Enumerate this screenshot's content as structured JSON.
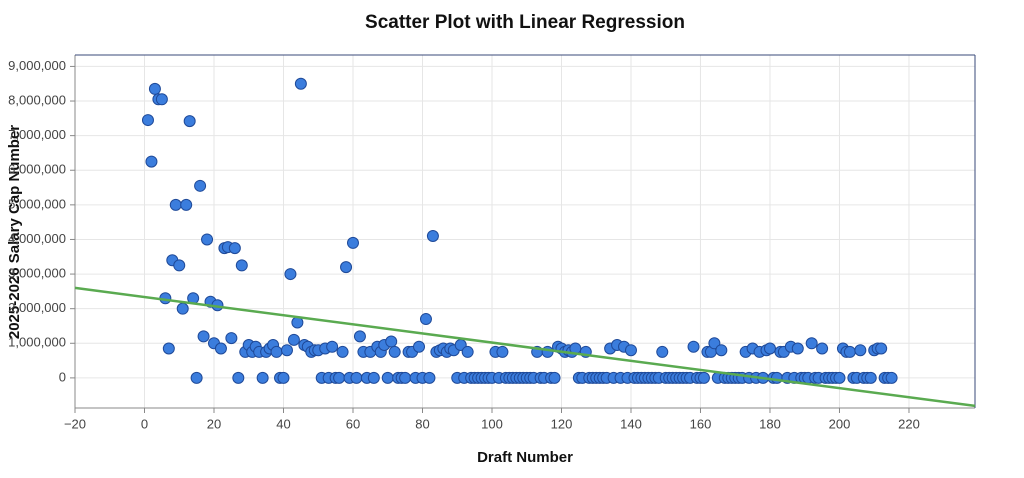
{
  "chart_data": {
    "type": "scatter",
    "title": "Scatter Plot with Linear Regression",
    "x_label": "Draft Number",
    "y_label": "2025-2026 Salary Cap Number",
    "xlim": [
      -20,
      239
    ],
    "ylim": [
      -870000,
      9330000
    ],
    "xticks": [
      {
        "value": -20,
        "label": "−20"
      },
      0,
      20,
      40,
      60,
      80,
      100,
      120,
      140,
      160,
      180,
      200,
      220
    ],
    "yticks": [
      0,
      {
        "value": 1000000,
        "label": "1,000,000"
      },
      {
        "value": 2000000,
        "label": "2,000,000"
      },
      {
        "value": 3000000,
        "label": "3,000,000"
      },
      {
        "value": 4000000,
        "label": "4,000,000"
      },
      {
        "value": 5000000,
        "label": "5,000,000"
      },
      {
        "value": 6000000,
        "label": "6,000,000"
      },
      {
        "value": 7000000,
        "label": "7,000,000"
      },
      {
        "value": 8000000,
        "label": "8,000,000"
      },
      {
        "value": 9000000,
        "label": "9,000,000"
      }
    ],
    "grid": true,
    "color": "#3b7ddd",
    "line_color": "#5aaa50",
    "regression": {
      "x": [
        -20,
        239
      ],
      "y": [
        2600000,
        -810000
      ]
    },
    "x": [
      1,
      2,
      3,
      4,
      5,
      6,
      7,
      8,
      9,
      10,
      11,
      12,
      13,
      14,
      15,
      16,
      17,
      18,
      19,
      20,
      21,
      22,
      23,
      24,
      25,
      26,
      27,
      28,
      29,
      30,
      31,
      32,
      33,
      34,
      35,
      36,
      37,
      38,
      39,
      40,
      41,
      42,
      43,
      44,
      45,
      46,
      47,
      48,
      49,
      50,
      51,
      52,
      53,
      54,
      55,
      56,
      57,
      58,
      59,
      60,
      61,
      62,
      63,
      64,
      65,
      66,
      67,
      68,
      69,
      70,
      71,
      72,
      73,
      74,
      75,
      76,
      77,
      78,
      79,
      80,
      81,
      82,
      83,
      84,
      85,
      86,
      87,
      88,
      89,
      90,
      91,
      92,
      93,
      94,
      95,
      96,
      97,
      98,
      99,
      100,
      101,
      102,
      103,
      104,
      105,
      106,
      107,
      108,
      109,
      110,
      111,
      112,
      113,
      114,
      115,
      116,
      117,
      118,
      119,
      120,
      121,
      122,
      123,
      124,
      125,
      126,
      127,
      128,
      129,
      130,
      131,
      132,
      133,
      134,
      135,
      136,
      137,
      138,
      139,
      140,
      141,
      142,
      143,
      144,
      145,
      146,
      147,
      148,
      149,
      150,
      151,
      152,
      153,
      154,
      155,
      156,
      157,
      158,
      159,
      160,
      161,
      162,
      163,
      164,
      165,
      166,
      167,
      168,
      169,
      170,
      171,
      172,
      173,
      174,
      175,
      176,
      177,
      178,
      179,
      180,
      181,
      182,
      183,
      184,
      185,
      186,
      187,
      188,
      189,
      190,
      191,
      192,
      193,
      194,
      195,
      196,
      197,
      198,
      199,
      200,
      201,
      202,
      203,
      204,
      205,
      206,
      207,
      208,
      209,
      210,
      211,
      212,
      213,
      214,
      215
    ],
    "values": [
      7450000,
      6250000,
      8350000,
      8050000,
      8050000,
      2300000,
      850000,
      3400000,
      5000000,
      3250000,
      2000000,
      5000000,
      7420000,
      2300000,
      0,
      5550000,
      1200000,
      4000000,
      2200000,
      1000000,
      2100000,
      850000,
      3750000,
      3780000,
      1150000,
      3750000,
      0,
      3250000,
      750000,
      950000,
      750000,
      900000,
      750000,
      0,
      750000,
      850000,
      950000,
      750000,
      0,
      0,
      800000,
      3000000,
      1100000,
      1600000,
      8500000,
      950000,
      900000,
      750000,
      800000,
      800000,
      0,
      850000,
      0,
      900000,
      0,
      0,
      750000,
      3200000,
      0,
      3900000,
      0,
      1200000,
      750000,
      0,
      750000,
      0,
      900000,
      750000,
      950000,
      0,
      1050000,
      750000,
      0,
      0,
      0,
      750000,
      750000,
      0,
      900000,
      0,
      1700000,
      0,
      4100000,
      750000,
      800000,
      850000,
      750000,
      850000,
      800000,
      0,
      950000,
      0,
      750000,
      0,
      0,
      0,
      0,
      0,
      0,
      0,
      750000,
      0,
      750000,
      0,
      0,
      0,
      0,
      0,
      0,
      0,
      0,
      0,
      750000,
      0,
      0,
      750000,
      0,
      0,
      900000,
      850000,
      750000,
      800000,
      750000,
      850000,
      0,
      0,
      750000,
      0,
      0,
      0,
      0,
      0,
      0,
      850000,
      0,
      950000,
      0,
      900000,
      0,
      800000,
      0,
      0,
      0,
      0,
      0,
      0,
      0,
      0,
      750000,
      0,
      0,
      0,
      0,
      0,
      0,
      0,
      0,
      900000,
      0,
      0,
      0,
      750000,
      750000,
      1000000,
      0,
      800000,
      0,
      0,
      0,
      0,
      0,
      0,
      750000,
      0,
      850000,
      0,
      750000,
      0,
      800000,
      850000,
      0,
      0,
      750000,
      750000,
      0,
      900000,
      0,
      850000,
      0,
      0,
      0,
      1000000,
      0,
      0,
      850000,
      0,
      0,
      0,
      0,
      0,
      850000,
      750000,
      750000,
      0,
      0,
      800000,
      0,
      0,
      0,
      800000,
      850000,
      850000,
      0,
      0,
      0
    ]
  }
}
